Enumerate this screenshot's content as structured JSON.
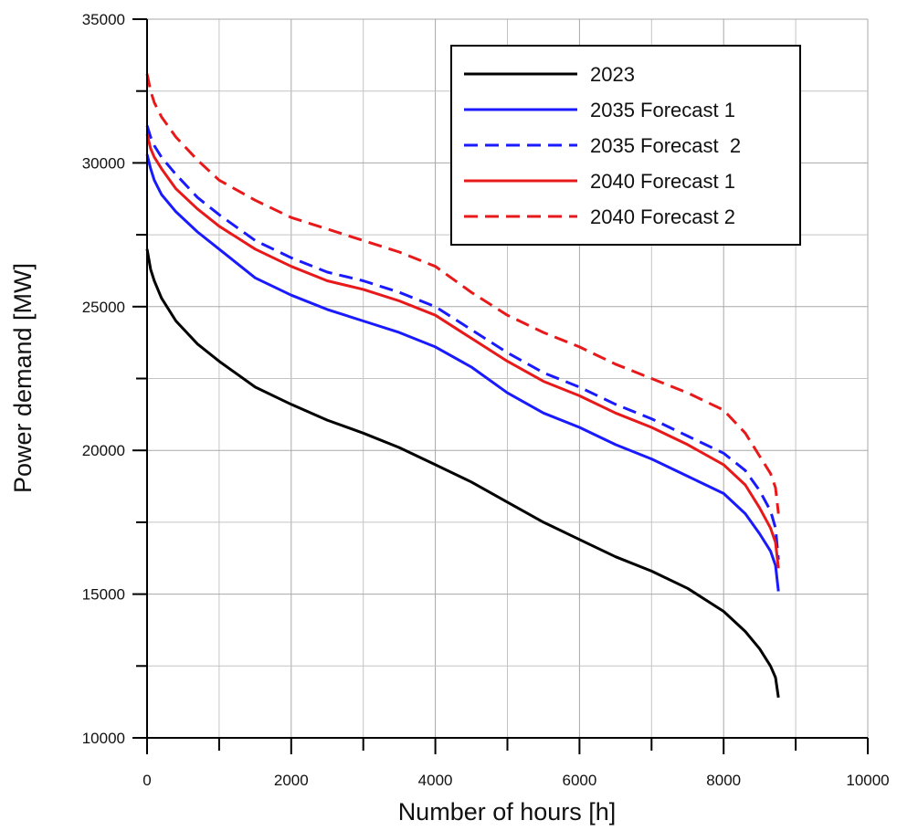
{
  "chart_data": {
    "type": "line",
    "title": "",
    "xlabel": "Number of hours [h]",
    "ylabel": "Power demand [MW]",
    "xlim": [
      0,
      10000
    ],
    "ylim": [
      10000,
      35000
    ],
    "x_ticks": [
      0,
      2000,
      4000,
      6000,
      8000,
      10000
    ],
    "x_tick_labels": [
      "0",
      "2000",
      "4000",
      "6000",
      "8000",
      "10000"
    ],
    "y_ticks": [
      10000,
      15000,
      20000,
      25000,
      30000,
      35000
    ],
    "y_tick_labels": [
      "10000",
      "15000",
      "20000",
      "25000",
      "30000",
      "35000"
    ],
    "grid": true,
    "legend_position": "top-right",
    "series": [
      {
        "name": "2023",
        "color": "#000000",
        "dash": "solid",
        "x": [
          0,
          50,
          100,
          200,
          400,
          700,
          1000,
          1500,
          2000,
          2500,
          3000,
          3500,
          4000,
          4500,
          5000,
          5500,
          6000,
          6500,
          7000,
          7500,
          8000,
          8300,
          8500,
          8650,
          8720,
          8760
        ],
        "y": [
          27000,
          26300,
          25900,
          25300,
          24500,
          23700,
          23100,
          22200,
          21600,
          21050,
          20600,
          20100,
          19500,
          18900,
          18200,
          17500,
          16900,
          16300,
          15800,
          15200,
          14400,
          13700,
          13100,
          12500,
          12100,
          11400
        ]
      },
      {
        "name": "2035 Forecast 1",
        "color": "#1a1aff",
        "dash": "solid",
        "x": [
          0,
          50,
          100,
          200,
          400,
          700,
          1000,
          1500,
          2000,
          2500,
          3000,
          3500,
          4000,
          4500,
          5000,
          5500,
          6000,
          6500,
          7000,
          7500,
          8000,
          8300,
          8500,
          8650,
          8720,
          8760
        ],
        "y": [
          30300,
          29800,
          29400,
          28900,
          28300,
          27600,
          27000,
          26000,
          25400,
          24900,
          24500,
          24100,
          23600,
          22900,
          22000,
          21300,
          20800,
          20200,
          19700,
          19100,
          18500,
          17800,
          17100,
          16500,
          16000,
          15100
        ]
      },
      {
        "name": "2035 Forecast  2",
        "color": "#1a1aff",
        "dash": "dashed",
        "x": [
          0,
          50,
          100,
          200,
          400,
          700,
          1000,
          1500,
          2000,
          2500,
          3000,
          3500,
          4000,
          4500,
          5000,
          5500,
          6000,
          6500,
          7000,
          7500,
          8000,
          8300,
          8500,
          8650,
          8720,
          8760
        ],
        "y": [
          31300,
          30900,
          30600,
          30200,
          29600,
          28800,
          28200,
          27300,
          26700,
          26200,
          25900,
          25500,
          25000,
          24200,
          23400,
          22700,
          22200,
          21600,
          21100,
          20500,
          19900,
          19300,
          18600,
          17900,
          17300,
          16200
        ]
      },
      {
        "name": "2040 Forecast 1",
        "color": "#e8191a",
        "dash": "solid",
        "x": [
          0,
          50,
          100,
          200,
          400,
          700,
          1000,
          1500,
          2000,
          2500,
          3000,
          3500,
          4000,
          4500,
          5000,
          5500,
          6000,
          6500,
          7000,
          7500,
          8000,
          8300,
          8500,
          8650,
          8720,
          8760
        ],
        "y": [
          31000,
          30500,
          30200,
          29800,
          29100,
          28400,
          27800,
          27000,
          26400,
          25900,
          25600,
          25200,
          24700,
          23900,
          23100,
          22400,
          21900,
          21300,
          20800,
          20200,
          19500,
          18800,
          18000,
          17300,
          16800,
          15900
        ]
      },
      {
        "name": "2040 Forecast 2",
        "color": "#e8191a",
        "dash": "dashed",
        "x": [
          0,
          50,
          100,
          200,
          400,
          700,
          1000,
          1500,
          2000,
          2500,
          3000,
          3500,
          4000,
          4500,
          5000,
          5500,
          6000,
          6500,
          7000,
          7500,
          8000,
          8300,
          8500,
          8650,
          8720,
          8760
        ],
        "y": [
          33100,
          32500,
          32100,
          31600,
          30900,
          30100,
          29400,
          28700,
          28100,
          27700,
          27300,
          26900,
          26400,
          25500,
          24700,
          24100,
          23600,
          23000,
          22500,
          22000,
          21400,
          20600,
          19800,
          19200,
          18700,
          17800
        ]
      }
    ]
  }
}
